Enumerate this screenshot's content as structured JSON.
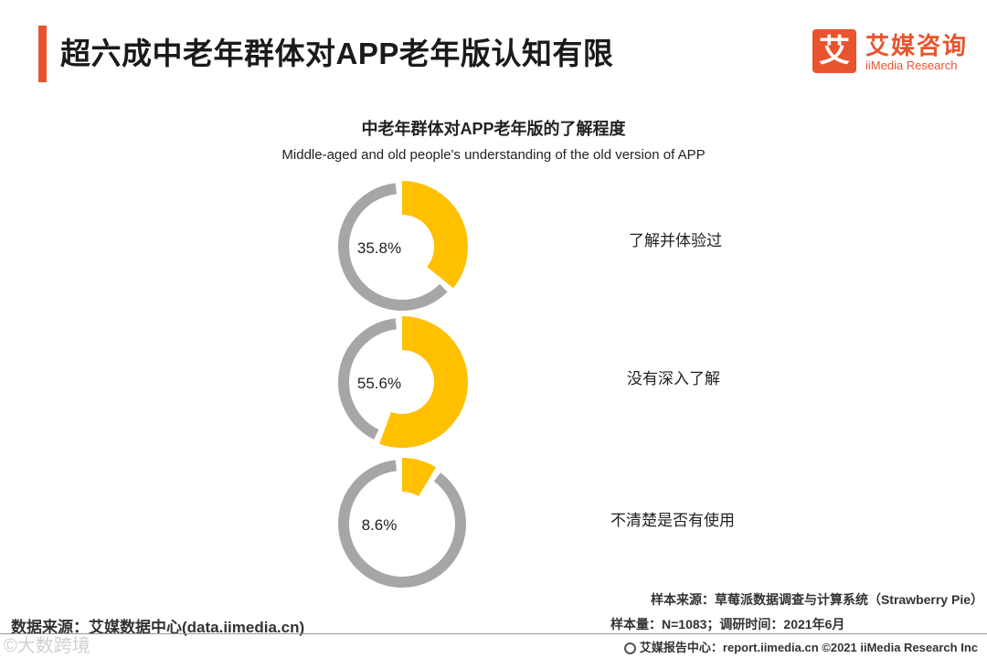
{
  "header": {
    "title": "超六成中老年群体对APP老年版认知有限",
    "logo_mark": "艾",
    "logo_cn": "艾媒咨询",
    "logo_en": "iiMedia Research"
  },
  "chart_data": {
    "type": "pie",
    "title": "中老年群体对APP老年版的了解程度",
    "subtitle": "Middle-aged and old people's understanding of the old version of APP",
    "items": [
      {
        "label": "了解并体验过",
        "value": 35.8,
        "value_label": "35.8%"
      },
      {
        "label": "没有深入了解",
        "value": 55.6,
        "value_label": "55.6%"
      },
      {
        "label": "不清楚是否有使用",
        "value": 8.6,
        "value_label": "8.6%"
      }
    ],
    "colors": {
      "highlight": "#ffc000",
      "remainder": "#a6a6a6"
    }
  },
  "footer": {
    "data_source": "数据来源：艾媒数据中心(data.iimedia.cn)",
    "sample_source": "样本来源：草莓派数据调查与计算系统（Strawberry Pie）",
    "sample_size": "样本量：N=1083；调研时间：2021年6月",
    "report_center": "艾媒报告中心：report.iimedia.cn  ©2021  iiMedia Research  Inc",
    "watermark": "©大数跨境"
  }
}
